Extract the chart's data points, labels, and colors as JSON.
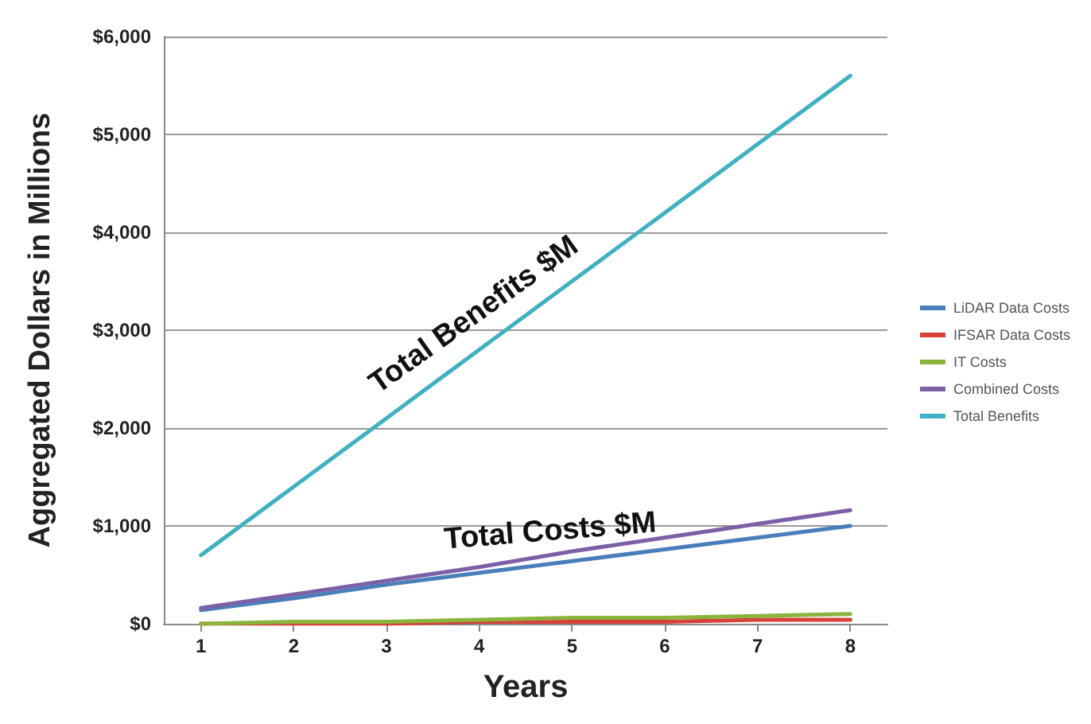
{
  "chart_data": {
    "type": "line",
    "xlabel": "Years",
    "ylabel": "Aggregated Dollars in Millions",
    "x": [
      1,
      2,
      3,
      4,
      5,
      6,
      7,
      8
    ],
    "xlim": [
      0.6,
      8.4
    ],
    "xticks": [
      1,
      2,
      3,
      4,
      5,
      6,
      7,
      8
    ],
    "ylim": [
      0,
      6000
    ],
    "yticks": [
      {
        "value": 0,
        "label": "$0"
      },
      {
        "value": 1000,
        "label": "$1,000"
      },
      {
        "value": 2000,
        "label": "$2,000"
      },
      {
        "value": 3000,
        "label": "$3,000"
      },
      {
        "value": 4000,
        "label": "$4,000"
      },
      {
        "value": 5000,
        "label": "$5,000"
      },
      {
        "value": 6000,
        "label": "$6,000"
      }
    ],
    "series": [
      {
        "name": "LiDAR Data Costs",
        "color": "#4a7ebb",
        "values": [
          140,
          260,
          400,
          520,
          640,
          760,
          880,
          1000
        ]
      },
      {
        "name": "IFSAR Data Costs",
        "color": "#d9403a",
        "values": [
          0,
          0,
          0,
          20,
          20,
          20,
          40,
          40
        ]
      },
      {
        "name": "IT Costs",
        "color": "#8ab43c",
        "values": [
          0,
          20,
          20,
          40,
          60,
          60,
          80,
          100
        ]
      },
      {
        "name": "Combined Costs",
        "color": "#7d5fa6",
        "values": [
          160,
          300,
          440,
          580,
          740,
          880,
          1020,
          1160
        ]
      },
      {
        "name": "Total Benefits",
        "color": "#3fb1c3",
        "values": [
          700,
          1400,
          2100,
          2800,
          3500,
          4200,
          4900,
          5600
        ]
      }
    ],
    "annotations": [
      "Total Benefits $M",
      "Total Costs $M"
    ],
    "grid": "y",
    "legend": "right",
    "marker": "none",
    "line_style": "solid"
  }
}
